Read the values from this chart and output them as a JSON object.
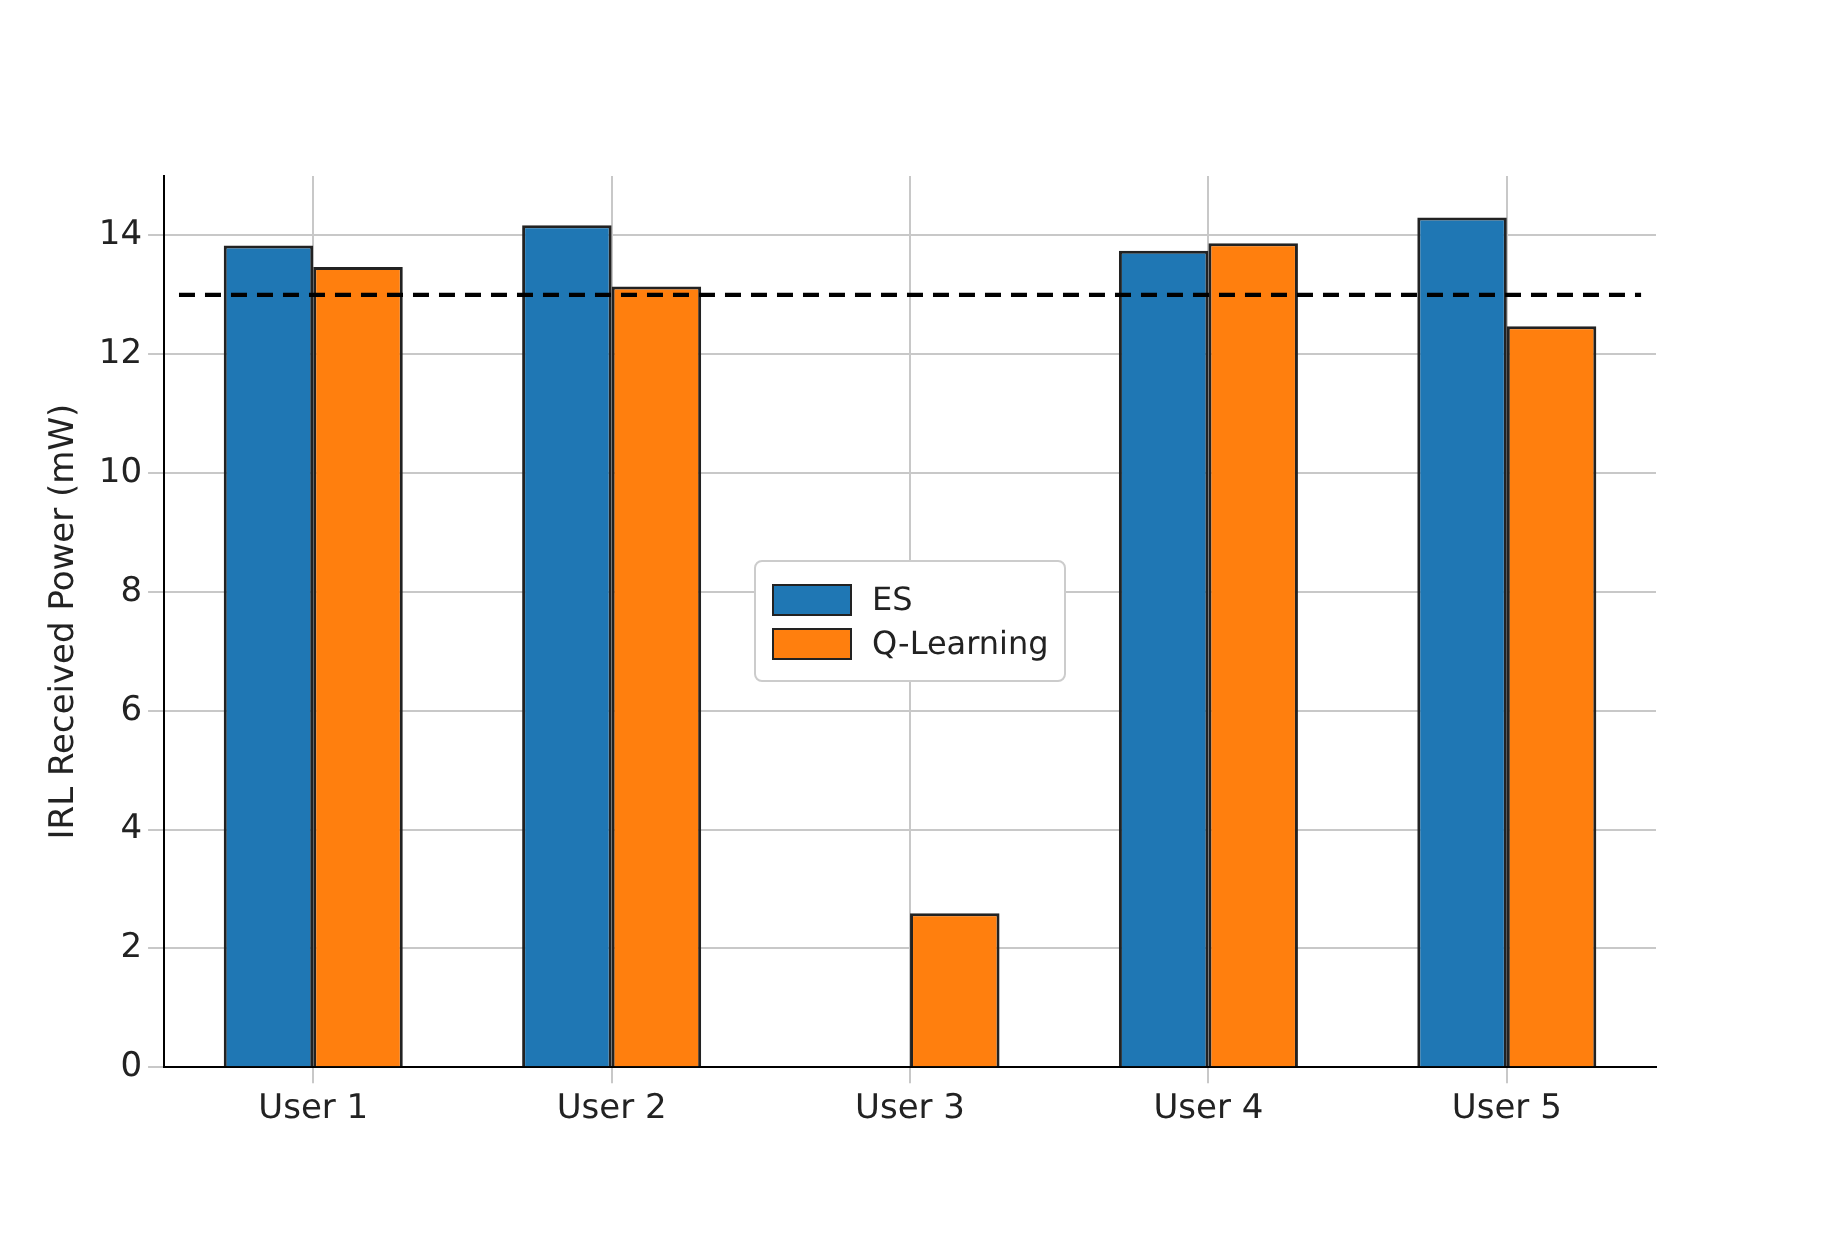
{
  "chart_data": {
    "type": "bar",
    "ylabel": "IRL Received Power (mW)",
    "categories": [
      "User 1",
      "User 2",
      "User 3",
      "User 4",
      "User 5"
    ],
    "series": [
      {
        "name": "ES",
        "color": "#1f77b4",
        "values": [
          13.83,
          14.17,
          0,
          13.74,
          14.3
        ]
      },
      {
        "name": "Q-Learning",
        "color": "#ff7f0e",
        "values": [
          13.47,
          13.14,
          2.59,
          13.87,
          12.47
        ]
      }
    ],
    "ylim": [
      0,
      15
    ],
    "yticks": [
      0,
      2,
      4,
      6,
      8,
      10,
      12,
      14
    ],
    "grid": true,
    "legend": "center",
    "ref_lines": [
      {
        "axis": "y",
        "value": 13,
        "color": "#000000",
        "line_style": "dashed"
      }
    ]
  }
}
